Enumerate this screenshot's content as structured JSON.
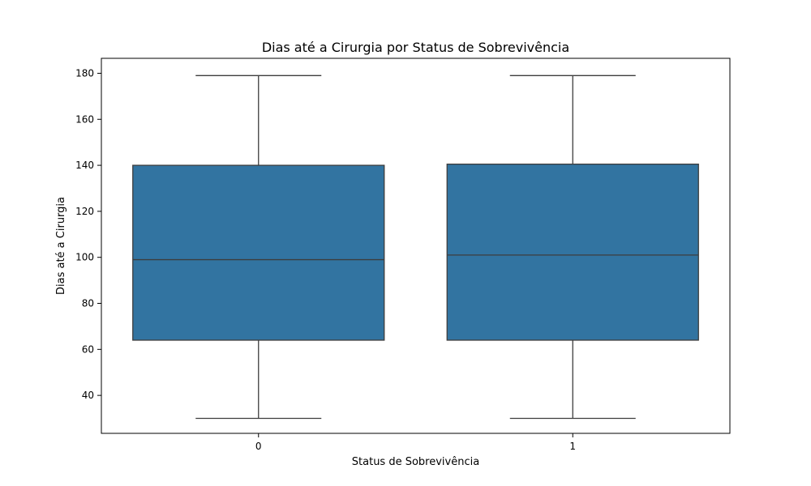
{
  "chart_data": {
    "type": "boxplot",
    "title": "Dias até a Cirurgia por Status de Sobrevivência",
    "xlabel": "Status de Sobrevivência",
    "ylabel": "Dias até a Cirurgia",
    "categories": [
      "0",
      "1"
    ],
    "ylim": [
      23.5,
      186.5
    ],
    "yticks": [
      40,
      60,
      80,
      100,
      120,
      140,
      160,
      180
    ],
    "grid": false,
    "legend": "none",
    "box_color": "#3274a1",
    "line_color": "#3d3d3d",
    "boxes": [
      {
        "category": "0",
        "whisker_low": 30,
        "q1": 64,
        "median": 99,
        "q3": 140,
        "whisker_high": 179
      },
      {
        "category": "1",
        "whisker_low": 30,
        "q1": 64,
        "median": 101,
        "q3": 140.5,
        "whisker_high": 179
      }
    ]
  }
}
